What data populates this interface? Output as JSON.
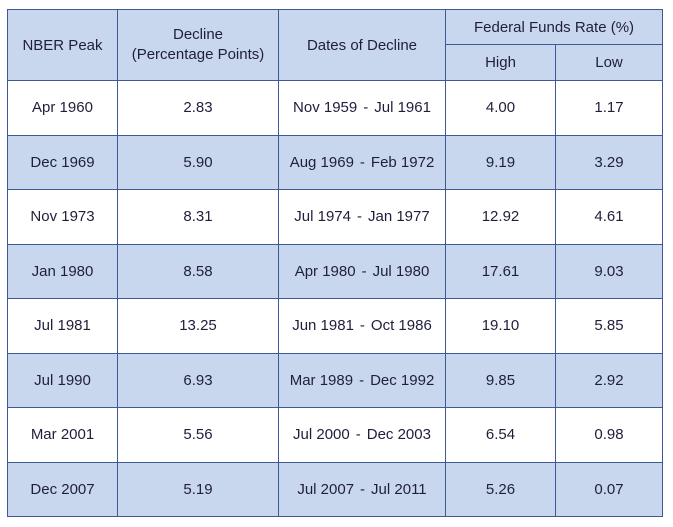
{
  "headers": {
    "nber_peak": "NBER Peak",
    "decline_line1": "Decline",
    "decline_line2": "(Percentage Points)",
    "dates": "Dates of Decline",
    "ffr": "Federal Funds Rate (%)",
    "high": "High",
    "low": "Low"
  },
  "rows": [
    {
      "peak": "Apr 1960",
      "decline": "2.83",
      "start": "Nov 1959",
      "end": "Jul 1961",
      "high": "4.00",
      "low": "1.17"
    },
    {
      "peak": "Dec 1969",
      "decline": "5.90",
      "start": "Aug 1969",
      "end": "Feb 1972",
      "high": "9.19",
      "low": "3.29"
    },
    {
      "peak": "Nov 1973",
      "decline": "8.31",
      "start": "Jul 1974",
      "end": "Jan 1977",
      "high": "12.92",
      "low": "4.61"
    },
    {
      "peak": "Jan 1980",
      "decline": "8.58",
      "start": "Apr 1980",
      "end": "Jul 1980",
      "high": "17.61",
      "low": "9.03"
    },
    {
      "peak": "Jul 1981",
      "decline": "13.25",
      "start": "Jun 1981",
      "end": "Oct 1986",
      "high": "19.10",
      "low": "5.85"
    },
    {
      "peak": "Jul 1990",
      "decline": "6.93",
      "start": "Mar 1989",
      "end": "Dec 1992",
      "high": "9.85",
      "low": "2.92"
    },
    {
      "peak": "Mar 2001",
      "decline": "5.56",
      "start": "Jul 2000",
      "end": "Dec 2003",
      "high": "6.54",
      "low": "0.98"
    },
    {
      "peak": "Dec 2007",
      "decline": "5.19",
      "start": "Jul 2007",
      "end": "Jul 2011",
      "high": "5.26",
      "low": "0.07"
    }
  ],
  "dash": "-",
  "colors": {
    "header_fill": "#c9d7ee",
    "shaded_row_fill": "#c9d7ee",
    "border": "#3d5a96",
    "text": "#1f1f3a"
  }
}
